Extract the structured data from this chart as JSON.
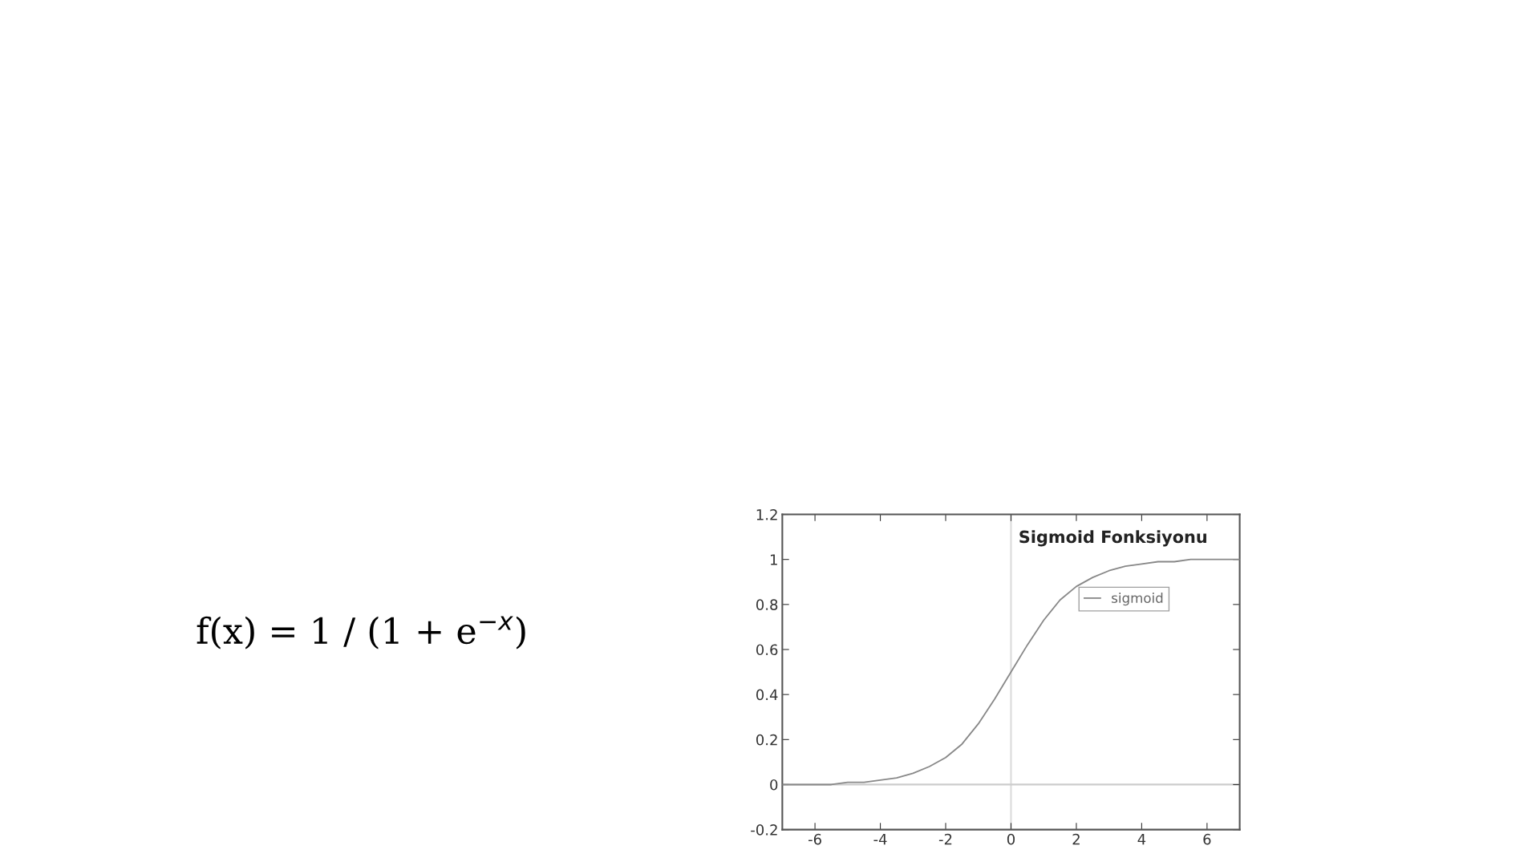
{
  "chart_data": {
    "type": "line",
    "title": "Sigmoid Fonksiyonu",
    "x": [
      -7,
      -6.5,
      -6,
      -5.5,
      -5,
      -4.5,
      -4,
      -3.5,
      -3,
      -2.5,
      -2,
      -1.5,
      -1,
      -0.5,
      0,
      0.5,
      1,
      1.5,
      2,
      2.5,
      3,
      3.5,
      4,
      4.5,
      5,
      5.5,
      6,
      6.5,
      7
    ],
    "series": [
      {
        "name": "sigmoid",
        "color": "#888888",
        "values": [
          0,
          0,
          0,
          0,
          0.01,
          0.01,
          0.02,
          0.03,
          0.05,
          0.08,
          0.12,
          0.18,
          0.27,
          0.38,
          0.5,
          0.62,
          0.73,
          0.82,
          0.88,
          0.92,
          0.95,
          0.97,
          0.98,
          0.99,
          0.99,
          1,
          1,
          1,
          1
        ]
      }
    ],
    "xlim": [
      -7,
      7
    ],
    "xticks": [
      -6,
      -4,
      -2,
      0,
      2,
      4,
      6
    ],
    "ylim": [
      -0.2,
      1.2
    ],
    "yticks": [
      -0.2,
      0,
      0.2,
      0.4,
      0.6,
      0.8,
      1,
      1.2
    ],
    "ref_lines": [
      {
        "axis": "x",
        "value": 0,
        "color": "#dddddd"
      },
      {
        "axis": "y",
        "value": 0,
        "color": "#cccccc"
      }
    ],
    "annotations": [
      "f(x) = 1 / (1 + e$^{−x}$)"
    ],
    "legend": "top right",
    "grid": false,
    "marker": "none",
    "line_style": "solid"
  }
}
